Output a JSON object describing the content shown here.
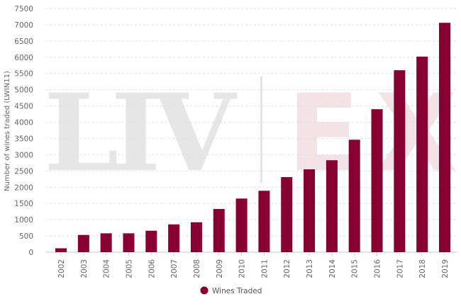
{
  "chart_data": {
    "type": "bar",
    "title": "",
    "xlabel": "",
    "ylabel": "Number of wines traded (LWIN11)",
    "ylim": [
      0,
      7500
    ],
    "ytick_step": 500,
    "grid": true,
    "legend_placement": "bottom",
    "categories": [
      "2002",
      "2003",
      "2004",
      "2005",
      "2006",
      "2007",
      "2008",
      "2009",
      "2010",
      "2011",
      "2012",
      "2013",
      "2014",
      "2015",
      "2016",
      "2017",
      "2018",
      "2019"
    ],
    "series": [
      {
        "name": "Wines Traded",
        "color": "#860032",
        "values": [
          120,
          530,
          580,
          580,
          660,
          855,
          920,
          1330,
          1650,
          1890,
          2310,
          2550,
          2830,
          3460,
          4400,
          5600,
          6020,
          7060
        ]
      }
    ],
    "watermark": {
      "text": "LIV-EX"
    }
  }
}
